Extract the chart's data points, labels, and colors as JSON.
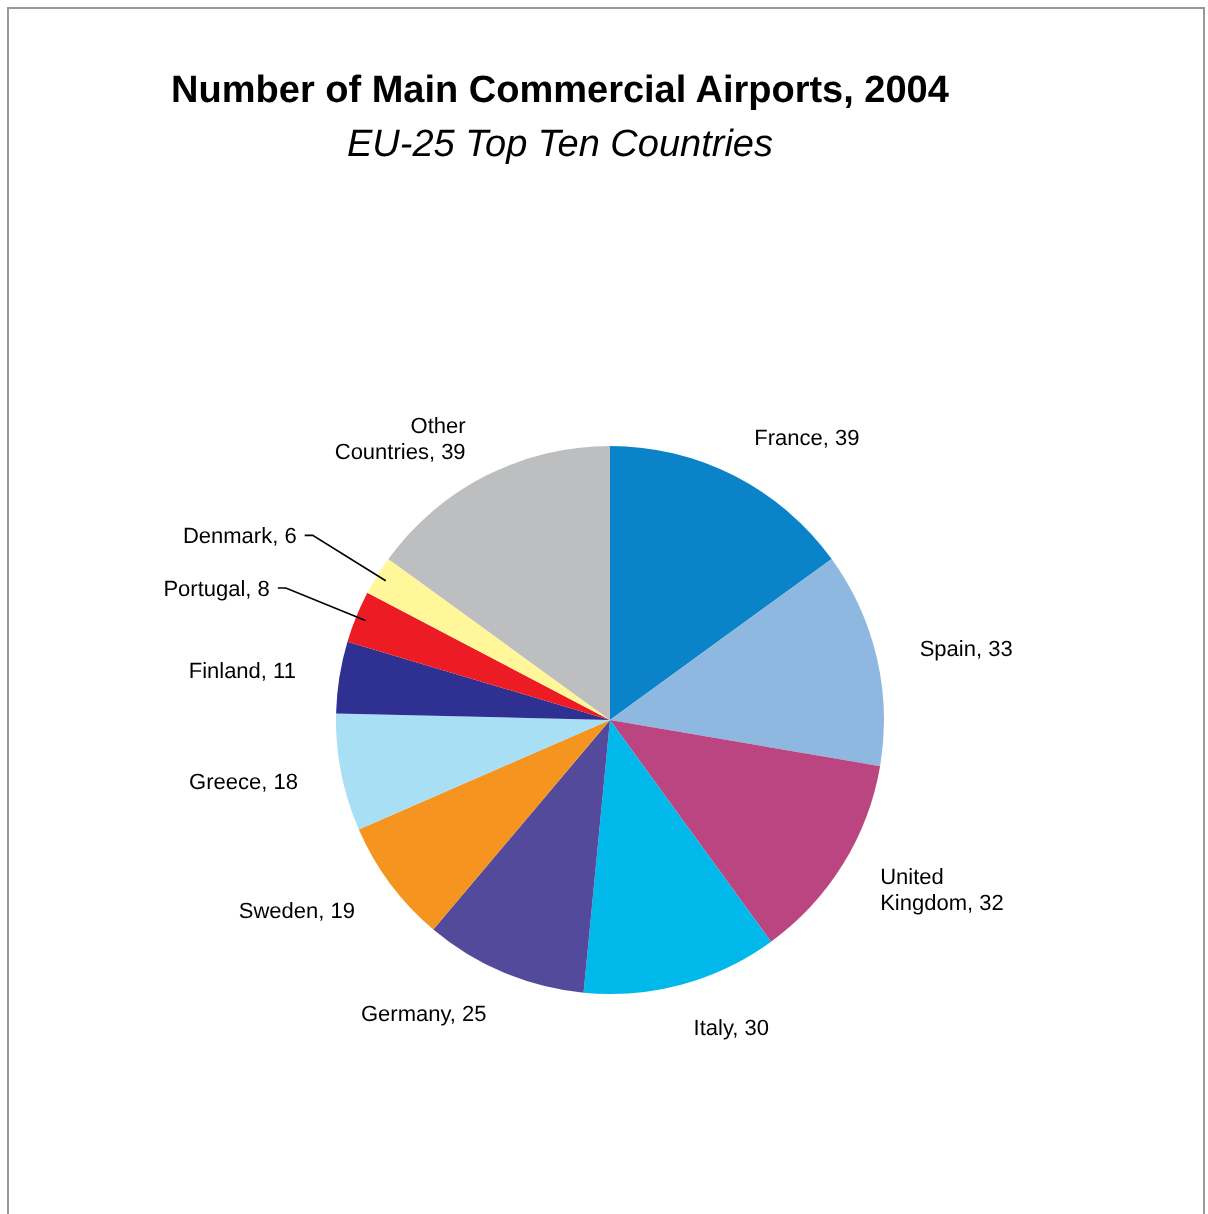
{
  "chart_data": {
    "type": "pie",
    "title": "Number of Main Commercial Airports, 2004",
    "subtitle": "EU-25 Top Ten Countries",
    "categories": [
      "France, 39",
      "Spain, 33",
      "United Kingdom, 32",
      "Italy, 30",
      "Germany, 25",
      "Sweden, 19",
      "Greece, 18",
      "Finland, 11",
      "Portugal, 8",
      "Denmark, 6",
      "Other Countries, 39"
    ],
    "values": [
      39,
      33,
      32,
      30,
      25,
      19,
      18,
      11,
      8,
      6,
      39
    ],
    "colors": [
      "#0a83c9",
      "#8fb8e0",
      "#bb4580",
      "#00b8ea",
      "#534a9c",
      "#f5941f",
      "#a8dff5",
      "#2e3192",
      "#ed1c24",
      "#fff799",
      "#bcbec0"
    ],
    "legend": false
  }
}
